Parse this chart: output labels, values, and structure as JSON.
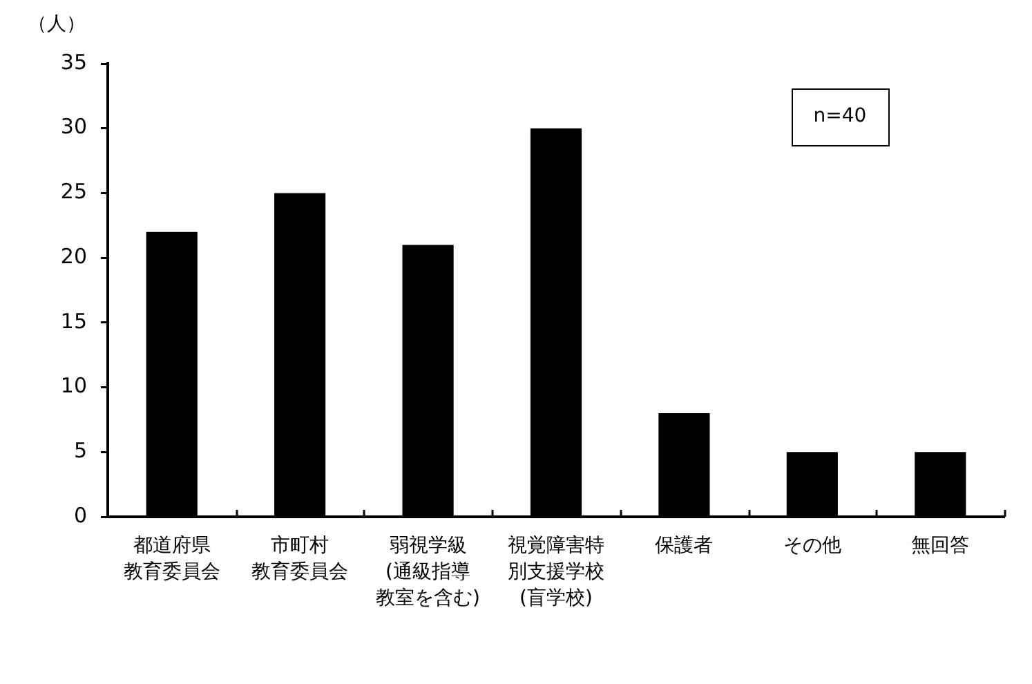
{
  "chart_data": {
    "type": "bar",
    "ylabel": "（人）",
    "categories": [
      "都道府県教育委員会",
      "市町村教育委員会",
      "弱視学級(通級指導教室を含む)",
      "視覚障害特別支援学校(盲学校)",
      "保護者",
      "その他",
      "無回答"
    ],
    "values": [
      22,
      25,
      21,
      30,
      8,
      5,
      5
    ],
    "color": "#000000",
    "ylim": [
      0,
      35
    ],
    "yticks": [
      0,
      5,
      10,
      15,
      20,
      25,
      30,
      35
    ],
    "annotations": [
      "n=40"
    ],
    "grid": false,
    "legend": false
  }
}
